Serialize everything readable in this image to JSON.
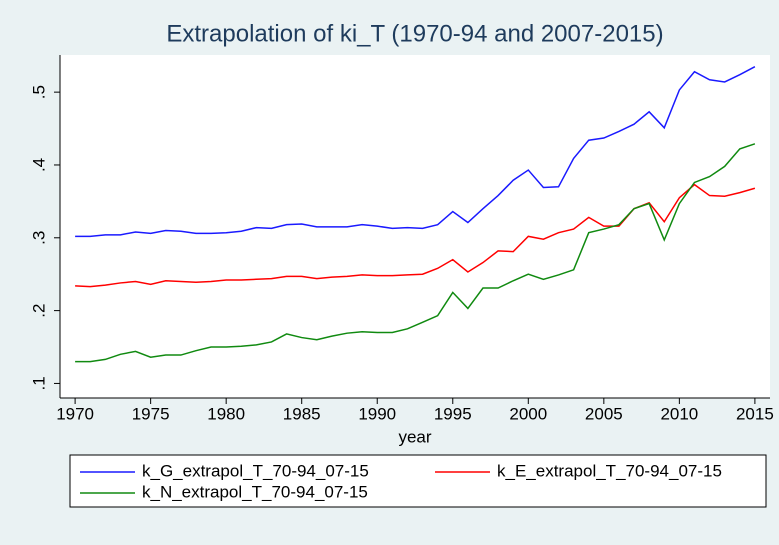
{
  "chart_data": {
    "type": "line",
    "title": "Extrapolation of ki_T (1970-94 and 2007-2015)",
    "x_label": "year",
    "x": [
      1970,
      1971,
      1972,
      1973,
      1974,
      1975,
      1976,
      1977,
      1978,
      1979,
      1980,
      1981,
      1982,
      1983,
      1984,
      1985,
      1986,
      1987,
      1988,
      1989,
      1990,
      1991,
      1992,
      1993,
      1994,
      1995,
      1996,
      1997,
      1998,
      1999,
      2000,
      2001,
      2002,
      2003,
      2004,
      2005,
      2006,
      2007,
      2008,
      2009,
      2010,
      2011,
      2012,
      2013,
      2014,
      2015
    ],
    "series": [
      {
        "name": "k_G_extrapol_T_70-94_07-15",
        "color": "#1a1aff",
        "values": [
          0.302,
          0.302,
          0.304,
          0.304,
          0.308,
          0.306,
          0.31,
          0.309,
          0.306,
          0.306,
          0.307,
          0.309,
          0.314,
          0.313,
          0.318,
          0.319,
          0.315,
          0.315,
          0.315,
          0.318,
          0.316,
          0.313,
          0.314,
          0.313,
          0.318,
          0.336,
          0.321,
          0.34,
          0.358,
          0.379,
          0.393,
          0.369,
          0.37,
          0.409,
          0.434,
          0.437,
          0.446,
          0.456,
          0.473,
          0.451,
          0.503,
          0.528,
          0.517,
          0.514,
          0.524,
          0.535
        ]
      },
      {
        "name": "k_E_extrapol_T_70-94_07-15",
        "color": "#ff0000",
        "values": [
          0.234,
          0.233,
          0.235,
          0.238,
          0.24,
          0.236,
          0.241,
          0.24,
          0.239,
          0.24,
          0.242,
          0.242,
          0.243,
          0.244,
          0.247,
          0.247,
          0.244,
          0.246,
          0.247,
          0.249,
          0.248,
          0.248,
          0.249,
          0.25,
          0.258,
          0.27,
          0.253,
          0.266,
          0.282,
          0.281,
          0.302,
          0.298,
          0.307,
          0.312,
          0.328,
          0.316,
          0.316,
          0.34,
          0.348,
          0.322,
          0.355,
          0.373,
          0.358,
          0.357,
          0.362,
          0.368
        ]
      },
      {
        "name": "k_N_extrapol_T_70-94_07-15",
        "color": "#108a10",
        "values": [
          0.13,
          0.13,
          0.133,
          0.14,
          0.144,
          0.136,
          0.139,
          0.139,
          0.145,
          0.15,
          0.15,
          0.151,
          0.153,
          0.157,
          0.168,
          0.163,
          0.16,
          0.165,
          0.169,
          0.171,
          0.17,
          0.17,
          0.175,
          0.184,
          0.193,
          0.225,
          0.203,
          0.231,
          0.231,
          0.241,
          0.25,
          0.243,
          0.249,
          0.256,
          0.307,
          0.312,
          0.318,
          0.34,
          0.347,
          0.297,
          0.347,
          0.376,
          0.384,
          0.398,
          0.422,
          0.429
        ]
      }
    ],
    "xlim": [
      1969,
      2016
    ],
    "xticks": [
      1970,
      1975,
      1980,
      1985,
      1990,
      1995,
      2000,
      2005,
      2010,
      2015
    ],
    "ylim": [
      0.08,
      0.551
    ],
    "yticks": [
      {
        "value": 0.1,
        "label": ".1"
      },
      {
        "value": 0.2,
        "label": ".2"
      },
      {
        "value": 0.3,
        "label": ".3"
      },
      {
        "value": 0.4,
        "label": ".4"
      },
      {
        "value": 0.5,
        "label": ".5"
      }
    ]
  }
}
